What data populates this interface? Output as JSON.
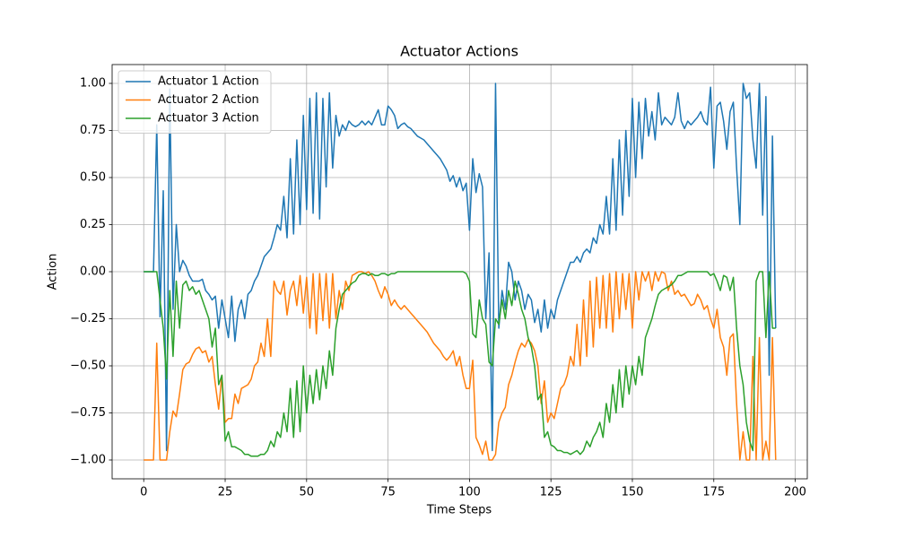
{
  "chart_data": {
    "type": "line",
    "title": "Actuator Actions",
    "x_label": "Time Steps",
    "y_label": "Action",
    "x": [
      0,
      1,
      2,
      3,
      4,
      5,
      6,
      7,
      8,
      9,
      10,
      11,
      12,
      13,
      14,
      15,
      16,
      17,
      18,
      19,
      20,
      21,
      22,
      23,
      24,
      25,
      26,
      27,
      28,
      29,
      30,
      31,
      32,
      33,
      34,
      35,
      36,
      37,
      38,
      39,
      40,
      41,
      42,
      43,
      44,
      45,
      46,
      47,
      48,
      49,
      50,
      51,
      52,
      53,
      54,
      55,
      56,
      57,
      58,
      59,
      60,
      61,
      62,
      63,
      64,
      65,
      66,
      67,
      68,
      69,
      70,
      71,
      72,
      73,
      74,
      75,
      76,
      77,
      78,
      79,
      80,
      81,
      82,
      83,
      84,
      85,
      86,
      87,
      88,
      89,
      90,
      91,
      92,
      93,
      94,
      95,
      96,
      97,
      98,
      99,
      100,
      101,
      102,
      103,
      104,
      105,
      106,
      107,
      108,
      109,
      110,
      111,
      112,
      113,
      114,
      115,
      116,
      117,
      118,
      119,
      120,
      121,
      122,
      123,
      124,
      125,
      126,
      127,
      128,
      129,
      130,
      131,
      132,
      133,
      134,
      135,
      136,
      137,
      138,
      139,
      140,
      141,
      142,
      143,
      144,
      145,
      146,
      147,
      148,
      149,
      150,
      151,
      152,
      153,
      154,
      155,
      156,
      157,
      158,
      159,
      160,
      161,
      162,
      163,
      164,
      165,
      166,
      167,
      168,
      169,
      170,
      171,
      172,
      173,
      174,
      175,
      176,
      177,
      178,
      179,
      180,
      181,
      182,
      183,
      184,
      185,
      186,
      187,
      188,
      189,
      190,
      191,
      192,
      193,
      194
    ],
    "series": [
      {
        "name": "Actuator 1 Action",
        "color": "#1f77b4",
        "values": [
          0,
          0,
          0,
          0,
          0.78,
          -0.24,
          0.43,
          -0.95,
          0.97,
          -0.2,
          0.25,
          0.0,
          0.06,
          0.03,
          -0.02,
          -0.05,
          -0.05,
          -0.05,
          -0.04,
          -0.1,
          -0.12,
          -0.15,
          -0.13,
          -0.3,
          -0.15,
          -0.25,
          -0.35,
          -0.13,
          -0.37,
          -0.2,
          -0.15,
          -0.25,
          -0.12,
          -0.1,
          -0.05,
          -0.02,
          0.03,
          0.08,
          0.1,
          0.12,
          0.18,
          0.25,
          0.22,
          0.4,
          0.18,
          0.6,
          0.2,
          0.7,
          0.25,
          0.83,
          0.33,
          0.92,
          0.31,
          0.95,
          0.28,
          0.92,
          0.45,
          0.95,
          0.55,
          0.83,
          0.72,
          0.78,
          0.75,
          0.8,
          0.78,
          0.77,
          0.78,
          0.8,
          0.78,
          0.8,
          0.78,
          0.82,
          0.86,
          0.78,
          0.78,
          0.88,
          0.86,
          0.83,
          0.76,
          0.78,
          0.79,
          0.77,
          0.76,
          0.74,
          0.72,
          0.71,
          0.7,
          0.68,
          0.66,
          0.64,
          0.62,
          0.6,
          0.57,
          0.54,
          0.48,
          0.51,
          0.45,
          0.5,
          0.43,
          0.47,
          0.22,
          0.6,
          0.42,
          0.52,
          0.45,
          -0.25,
          0.1,
          -0.95,
          1.0,
          -0.3,
          -0.1,
          -0.2,
          0.05,
          0.0,
          -0.15,
          -0.05,
          -0.1,
          -0.2,
          -0.12,
          -0.15,
          -0.27,
          -0.2,
          -0.32,
          -0.15,
          -0.3,
          -0.2,
          -0.25,
          -0.15,
          -0.1,
          -0.05,
          0.0,
          0.05,
          0.05,
          0.08,
          0.05,
          0.1,
          0.12,
          0.1,
          0.18,
          0.15,
          0.25,
          0.2,
          0.4,
          0.2,
          0.6,
          0.22,
          0.7,
          0.3,
          0.75,
          0.4,
          0.92,
          0.5,
          0.9,
          0.6,
          0.92,
          0.72,
          0.85,
          0.7,
          0.95,
          0.78,
          0.82,
          0.8,
          0.78,
          0.82,
          0.95,
          0.8,
          0.76,
          0.8,
          0.78,
          0.8,
          0.82,
          0.85,
          0.8,
          0.78,
          0.98,
          0.55,
          0.88,
          0.9,
          0.8,
          0.65,
          0.85,
          0.9,
          0.55,
          0.25,
          1.0,
          0.92,
          0.95,
          0.7,
          0.55,
          1.0,
          0.3,
          0.93,
          -0.55,
          0.72,
          -0.3
        ]
      },
      {
        "name": "Actuator 2 Action",
        "color": "#ff7f0e",
        "values": [
          -1,
          -1,
          -1,
          -1,
          -0.38,
          -1,
          -1,
          -1,
          -0.85,
          -0.74,
          -0.77,
          -0.65,
          -0.52,
          -0.49,
          -0.48,
          -0.44,
          -0.41,
          -0.4,
          -0.43,
          -0.42,
          -0.48,
          -0.45,
          -0.6,
          -0.73,
          -0.55,
          -0.8,
          -0.78,
          -0.78,
          -0.65,
          -0.7,
          -0.62,
          -0.61,
          -0.6,
          -0.57,
          -0.5,
          -0.48,
          -0.38,
          -0.45,
          -0.25,
          -0.45,
          -0.05,
          -0.1,
          -0.12,
          -0.05,
          -0.23,
          -0.1,
          -0.05,
          -0.18,
          -0.02,
          -0.22,
          -0.03,
          -0.3,
          -0.01,
          -0.33,
          -0.01,
          -0.26,
          -0.01,
          -0.3,
          -0.01,
          -0.25,
          -0.1,
          -0.2,
          -0.05,
          -0.1,
          -0.02,
          -0.01,
          0,
          0,
          -0.01,
          0,
          -0.02,
          -0.05,
          -0.1,
          -0.14,
          -0.08,
          -0.12,
          -0.18,
          -0.15,
          -0.18,
          -0.2,
          -0.18,
          -0.2,
          -0.22,
          -0.24,
          -0.26,
          -0.28,
          -0.3,
          -0.32,
          -0.35,
          -0.38,
          -0.4,
          -0.42,
          -0.45,
          -0.47,
          -0.45,
          -0.42,
          -0.5,
          -0.45,
          -0.55,
          -0.62,
          -0.62,
          -0.47,
          -0.88,
          -0.92,
          -0.97,
          -0.9,
          -1,
          -1,
          -0.97,
          -0.8,
          -0.75,
          -0.72,
          -0.6,
          -0.55,
          -0.48,
          -0.42,
          -0.38,
          -0.4,
          -0.36,
          -0.38,
          -0.42,
          -0.5,
          -0.7,
          -0.58,
          -0.8,
          -0.75,
          -0.78,
          -0.7,
          -0.62,
          -0.6,
          -0.55,
          -0.45,
          -0.5,
          -0.28,
          -0.5,
          -0.15,
          -0.45,
          -0.05,
          -0.4,
          -0.03,
          -0.3,
          -0.02,
          -0.3,
          -0.01,
          -0.32,
          0,
          -0.25,
          -0.01,
          -0.2,
          -0.01,
          -0.3,
          0,
          -0.15,
          0,
          -0.05,
          0,
          -0.1,
          0,
          -0.05,
          0,
          -0.01,
          -0.1,
          -0.05,
          -0.12,
          -0.1,
          -0.13,
          -0.12,
          -0.15,
          -0.18,
          -0.17,
          -0.12,
          -0.15,
          -0.2,
          -0.18,
          -0.25,
          -0.3,
          -0.2,
          -0.35,
          -0.4,
          -0.55,
          -0.35,
          -0.33,
          -0.7,
          -1,
          -0.85,
          -1,
          -1,
          -0.45,
          -1,
          -0.35,
          -1,
          -0.9,
          -1,
          -0.35,
          -1
        ]
      },
      {
        "name": "Actuator 3 Action",
        "color": "#2ca02c",
        "values": [
          0,
          0,
          0,
          0,
          0,
          -0.15,
          -0.3,
          -0.57,
          -0.1,
          -0.45,
          -0.05,
          -0.3,
          -0.07,
          -0.05,
          -0.1,
          -0.08,
          -0.12,
          -0.1,
          -0.15,
          -0.2,
          -0.25,
          -0.4,
          -0.3,
          -0.6,
          -0.55,
          -0.9,
          -0.85,
          -0.93,
          -0.93,
          -0.94,
          -0.95,
          -0.97,
          -0.97,
          -0.98,
          -0.98,
          -0.98,
          -0.97,
          -0.97,
          -0.95,
          -0.9,
          -0.93,
          -0.85,
          -0.88,
          -0.75,
          -0.85,
          -0.62,
          -0.88,
          -0.58,
          -0.85,
          -0.5,
          -0.75,
          -0.55,
          -0.7,
          -0.52,
          -0.68,
          -0.5,
          -0.62,
          -0.42,
          -0.55,
          -0.3,
          -0.2,
          -0.12,
          -0.1,
          -0.08,
          -0.06,
          -0.05,
          -0.02,
          -0.01,
          -0.01,
          -0.02,
          -0.01,
          -0.02,
          -0.02,
          -0.01,
          -0.01,
          -0.02,
          -0.01,
          -0.01,
          0,
          0,
          0,
          0,
          0,
          0,
          0,
          0,
          0,
          0,
          0,
          0,
          0,
          0,
          0,
          0,
          0,
          0,
          0,
          0,
          0,
          -0.01,
          -0.05,
          -0.33,
          -0.35,
          -0.15,
          -0.25,
          -0.28,
          -0.48,
          -0.5,
          -0.25,
          -0.28,
          -0.15,
          -0.25,
          -0.1,
          -0.18,
          -0.05,
          -0.12,
          -0.2,
          -0.25,
          -0.35,
          -0.4,
          -0.5,
          -0.68,
          -0.65,
          -0.88,
          -0.85,
          -0.92,
          -0.93,
          -0.95,
          -0.95,
          -0.96,
          -0.96,
          -0.97,
          -0.96,
          -0.95,
          -0.97,
          -0.95,
          -0.9,
          -0.93,
          -0.88,
          -0.85,
          -0.8,
          -0.88,
          -0.7,
          -0.8,
          -0.6,
          -0.75,
          -0.52,
          -0.72,
          -0.5,
          -0.65,
          -0.5,
          -0.6,
          -0.45,
          -0.55,
          -0.35,
          -0.3,
          -0.25,
          -0.18,
          -0.12,
          -0.1,
          -0.09,
          -0.08,
          -0.07,
          -0.05,
          -0.02,
          -0.02,
          -0.01,
          0,
          0,
          0,
          0,
          0,
          0,
          0,
          -0.02,
          -0.01,
          -0.05,
          -0.1,
          -0.02,
          -0.03,
          -0.1,
          -0.03,
          -0.3,
          -0.5,
          -0.6,
          -0.8,
          -0.9,
          -0.95,
          -0.05,
          0,
          0,
          -0.35,
          0,
          -0.3,
          -0.3
        ]
      }
    ],
    "xlim": [
      -9.7,
      203.7
    ],
    "ylim": [
      -1.1,
      1.1
    ],
    "xticks": [
      0,
      25,
      50,
      75,
      100,
      125,
      150,
      175,
      200
    ],
    "yticks": [
      {
        "value": -1,
        "label": "−1.00"
      },
      {
        "value": -0.75,
        "label": "−0.75"
      },
      {
        "value": -0.5,
        "label": "−0.50"
      },
      {
        "value": -0.25,
        "label": "−0.25"
      },
      {
        "value": 0,
        "label": "0.00"
      },
      {
        "value": 0.25,
        "label": "0.25"
      },
      {
        "value": 0.5,
        "label": "0.50"
      },
      {
        "value": 0.75,
        "label": "0.75"
      },
      {
        "value": 1,
        "label": "1.00"
      }
    ],
    "grid": true,
    "legend": "upper left"
  }
}
